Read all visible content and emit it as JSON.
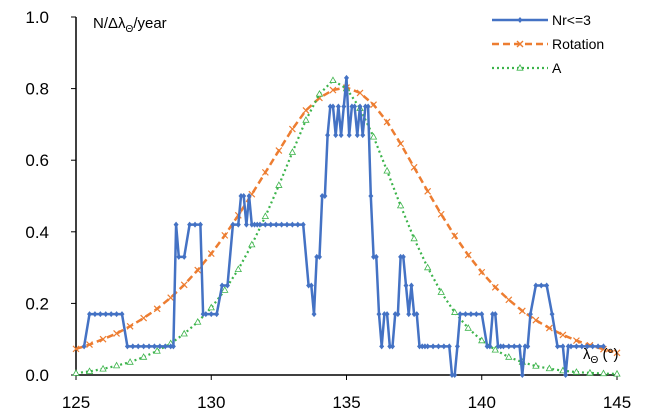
{
  "chart_data": {
    "type": "line",
    "y_axis_title": "N/Δλ",
    "y_axis_title_sub": "Θ",
    "y_axis_title_suffix": "/year",
    "x_axis_title": "λ",
    "x_axis_title_sub": "Θ",
    "x_axis_title_suffix": " (°)",
    "xlim": [
      125,
      145
    ],
    "ylim": [
      0,
      1.0
    ],
    "x_ticks": [
      "125",
      "130",
      "135",
      "140",
      "145"
    ],
    "y_ticks": [
      "0.0",
      "0.2",
      "0.4",
      "0.6",
      "0.8",
      "1.0"
    ],
    "grid": false,
    "legend_position": "top-right",
    "series": [
      {
        "name": "Nr<=3",
        "color": "#4472C4",
        "style": "solid-diamond",
        "x": [
          125.3,
          125.5,
          125.7,
          125.9,
          126.1,
          126.3,
          126.5,
          126.7,
          126.9,
          127.1,
          127.3,
          127.5,
          127.7,
          127.9,
          128.1,
          128.3,
          128.5,
          128.6,
          128.7,
          128.8,
          129.0,
          129.2,
          129.4,
          129.6,
          129.7,
          129.8,
          130.0,
          130.2,
          130.4,
          130.6,
          130.8,
          131.0,
          131.1,
          131.2,
          131.3,
          131.4,
          131.5,
          131.6,
          131.7,
          131.8,
          132.0,
          132.2,
          132.4,
          132.6,
          132.8,
          133.0,
          133.2,
          133.4,
          133.6,
          133.7,
          133.8,
          133.9,
          134.0,
          134.1,
          134.2,
          134.3,
          134.4,
          134.5,
          134.6,
          134.7,
          134.8,
          134.9,
          135.0,
          135.1,
          135.2,
          135.3,
          135.4,
          135.5,
          135.6,
          135.7,
          135.8,
          135.9,
          136.0,
          136.1,
          136.2,
          136.3,
          136.4,
          136.5,
          136.6,
          136.7,
          136.8,
          136.9,
          137.0,
          137.1,
          137.2,
          137.3,
          137.4,
          137.5,
          137.6,
          137.7,
          137.8,
          137.9,
          138.0,
          138.2,
          138.4,
          138.6,
          138.8,
          138.9,
          139.0,
          139.1,
          139.2,
          139.4,
          139.6,
          139.8,
          140.0,
          140.2,
          140.3,
          140.4,
          140.5,
          140.6,
          140.7,
          140.8,
          141.0,
          141.2,
          141.4,
          141.5,
          141.6,
          141.7,
          141.8,
          142.0,
          142.2,
          142.4,
          142.6,
          142.8,
          143.0,
          143.1,
          143.2,
          143.3,
          143.5,
          143.7,
          143.9,
          144.1,
          144.3,
          144.5
        ],
        "y": [
          0.08,
          0.17,
          0.17,
          0.17,
          0.17,
          0.17,
          0.17,
          0.17,
          0.08,
          0.08,
          0.08,
          0.08,
          0.08,
          0.08,
          0.08,
          0.08,
          0.08,
          0.08,
          0.42,
          0.33,
          0.33,
          0.42,
          0.42,
          0.42,
          0.17,
          0.17,
          0.17,
          0.17,
          0.25,
          0.25,
          0.42,
          0.42,
          0.5,
          0.5,
          0.42,
          0.5,
          0.42,
          0.42,
          0.42,
          0.42,
          0.42,
          0.42,
          0.42,
          0.42,
          0.42,
          0.42,
          0.42,
          0.42,
          0.25,
          0.25,
          0.17,
          0.33,
          0.33,
          0.5,
          0.5,
          0.67,
          0.75,
          0.75,
          0.67,
          0.75,
          0.67,
          0.75,
          0.83,
          0.67,
          0.75,
          0.75,
          0.67,
          0.75,
          0.67,
          0.75,
          0.75,
          0.5,
          0.33,
          0.33,
          0.17,
          0.08,
          0.17,
          0.17,
          0.08,
          0.08,
          0.17,
          0.17,
          0.33,
          0.33,
          0.25,
          0.17,
          0.25,
          0.17,
          0.17,
          0.08,
          0.08,
          0.08,
          0.08,
          0.08,
          0.08,
          0.08,
          0.08,
          0.0,
          0.0,
          0.08,
          0.17,
          0.17,
          0.17,
          0.17,
          0.17,
          0.08,
          0.08,
          0.17,
          0.17,
          0.08,
          0.08,
          0.08,
          0.08,
          0.08,
          0.08,
          0.0,
          0.08,
          0.08,
          0.17,
          0.25,
          0.25,
          0.25,
          0.17,
          0.08,
          0.08,
          0.0,
          0.08,
          0.08,
          0.08,
          0.08,
          0.08,
          0.08,
          0.08,
          0.08
        ]
      },
      {
        "name": "Rotation",
        "color": "#ED7D31",
        "style": "dashed-x",
        "x": [
          125,
          125.5,
          126,
          126.5,
          127,
          127.5,
          128,
          128.5,
          129,
          129.5,
          130,
          130.5,
          131,
          131.5,
          132,
          132.5,
          133,
          133.5,
          134,
          134.5,
          135,
          135.5,
          136,
          136.5,
          137,
          137.5,
          138,
          138.5,
          139,
          139.5,
          140,
          140.5,
          141,
          141.5,
          142,
          142.5,
          143,
          143.5,
          144,
          144.5,
          145
        ],
        "y": [
          0.073,
          0.085,
          0.1,
          0.116,
          0.136,
          0.159,
          0.185,
          0.216,
          0.252,
          0.293,
          0.339,
          0.39,
          0.446,
          0.505,
          0.566,
          0.627,
          0.687,
          0.739,
          0.774,
          0.796,
          0.803,
          0.788,
          0.755,
          0.707,
          0.646,
          0.58,
          0.513,
          0.449,
          0.389,
          0.335,
          0.287,
          0.245,
          0.21,
          0.179,
          0.153,
          0.131,
          0.112,
          0.096,
          0.083,
          0.072,
          0.062
        ]
      },
      {
        "name": "A",
        "color": "#3CB44B",
        "style": "dotted-triangle",
        "x": [
          125,
          125.5,
          126,
          126.5,
          127,
          127.5,
          128,
          128.5,
          129,
          129.5,
          130,
          130.5,
          131,
          131.5,
          132,
          132.5,
          133,
          133.5,
          134,
          134.5,
          135,
          135.5,
          136,
          136.5,
          137,
          137.5,
          138,
          138.5,
          139,
          139.5,
          140,
          140.5,
          141,
          141.5,
          142,
          142.5,
          143,
          143.5,
          144,
          144.5,
          145
        ],
        "y": [
          0.005,
          0.01,
          0.017,
          0.026,
          0.036,
          0.05,
          0.067,
          0.088,
          0.115,
          0.148,
          0.188,
          0.237,
          0.295,
          0.364,
          0.443,
          0.53,
          0.622,
          0.712,
          0.785,
          0.823,
          0.8,
          0.745,
          0.665,
          0.57,
          0.473,
          0.381,
          0.3,
          0.231,
          0.175,
          0.131,
          0.096,
          0.07,
          0.05,
          0.036,
          0.025,
          0.018,
          0.012,
          0.008,
          0.006,
          0.004,
          0.003
        ]
      }
    ]
  }
}
